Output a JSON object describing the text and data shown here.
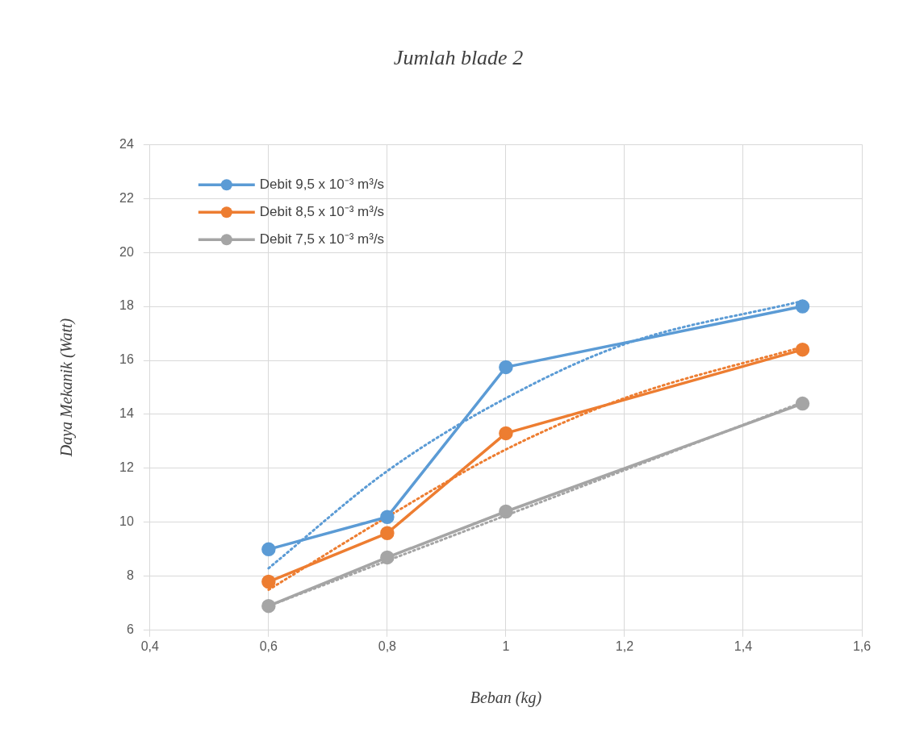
{
  "chart_data": {
    "type": "line",
    "title": "Jumlah blade 2",
    "xlabel": "Beban (kg)",
    "ylabel": "Daya Mekanik (Watt)",
    "x": [
      0.6,
      0.8,
      1,
      1.5
    ],
    "xlim": [
      0.4,
      1.6
    ],
    "xticks": [
      {
        "value": 0.4,
        "label": "0,4"
      },
      {
        "value": 0.6,
        "label": "0,6"
      },
      {
        "value": 0.8,
        "label": "0,8"
      },
      {
        "value": 1,
        "label": "1"
      },
      {
        "value": 1.2,
        "label": "1,2"
      },
      {
        "value": 1.4,
        "label": "1,4"
      },
      {
        "value": 1.6,
        "label": "1,6"
      }
    ],
    "ylim": [
      6,
      24
    ],
    "yticks": [
      6,
      8,
      10,
      12,
      14,
      16,
      18,
      20,
      22,
      24
    ],
    "grid": true,
    "legend": "top left",
    "marker": "circle",
    "line_style": "solid",
    "series": [
      {
        "name": "Debit 9,5 x 10⁻³ m³/s",
        "color": "#5b9bd5",
        "values": [
          9.0,
          10.2,
          15.75,
          18.0
        ]
      },
      {
        "name": "Debit 8,5 x 10⁻³ m³/s",
        "color": "#ed7d31",
        "values": [
          7.8,
          9.6,
          13.3,
          16.4
        ]
      },
      {
        "name": "Debit 7,5 x 10⁻³ m³/s",
        "color": "#a5a5a5",
        "values": [
          6.9,
          8.7,
          10.4,
          14.4
        ]
      },
      {
        "color": "#5b9bd5",
        "line_style": "dotted",
        "marker": "none",
        "x": [
          0.6,
          0.8,
          1,
          1.2,
          1.5
        ],
        "values": [
          8.3,
          11.9,
          14.6,
          16.6,
          18.2
        ]
      },
      {
        "color": "#ed7d31",
        "line_style": "dotted",
        "marker": "none",
        "x": [
          0.6,
          0.8,
          1,
          1.2,
          1.5
        ],
        "values": [
          7.5,
          10.2,
          12.7,
          14.6,
          16.5
        ]
      },
      {
        "color": "#a5a5a5",
        "line_style": "dotted",
        "marker": "none",
        "x": [
          0.6,
          1.5
        ],
        "values": [
          6.9,
          14.45
        ]
      }
    ]
  }
}
